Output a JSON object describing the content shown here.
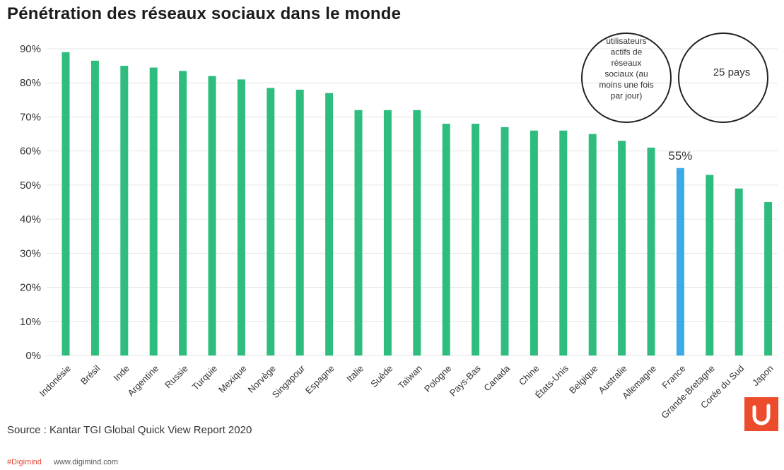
{
  "title": "Pénétration des réseaux sociaux dans le monde",
  "source": "Source : Kantar TGI Global Quick View Report 2020",
  "footer": {
    "tag": "#Digimind",
    "url": "www.digimind.com"
  },
  "annotation": {
    "left_circle_lines": [
      "utilisateurs",
      "actifs de",
      "réseaux",
      "sociaux (au",
      "moins une fois",
      "par jour)"
    ],
    "right_circle_text": "25 pays"
  },
  "highlight_label": "55%",
  "colors": {
    "bar": "#2ebd7e",
    "highlight": "#3aabe8",
    "grid": "#e6e6e6",
    "logo": "#ec4c2c"
  },
  "logo_icon": "digimind-logo-icon",
  "chart_data": {
    "type": "bar",
    "title": "Pénétration des réseaux sociaux dans le monde",
    "xlabel": "",
    "ylabel": "",
    "ylim": [
      0,
      90
    ],
    "y_ticks": [
      "0%",
      "10%",
      "20%",
      "30%",
      "40%",
      "50%",
      "60%",
      "70%",
      "80%",
      "90%"
    ],
    "grid": true,
    "highlight_category": "France",
    "categories": [
      "Indonésie",
      "Brésil",
      "Inde",
      "Argentine",
      "Russie",
      "Turquie",
      "Mexique",
      "Norvège",
      "Singapour",
      "Espagne",
      "Italie",
      "Suède",
      "Taïwan",
      "Pologne",
      "Pays-Bas",
      "Canada",
      "Chine",
      "États-Unis",
      "Belgique",
      "Australie",
      "Allemagne",
      "France",
      "Grande-Bretagne",
      "Corée du Sud",
      "Japon"
    ],
    "values": [
      89,
      86.5,
      85,
      84.5,
      83.5,
      82,
      81,
      78.5,
      78,
      77,
      72,
      72,
      72,
      68,
      68,
      67,
      66,
      66,
      65,
      63,
      61,
      55,
      53,
      49,
      45
    ]
  }
}
